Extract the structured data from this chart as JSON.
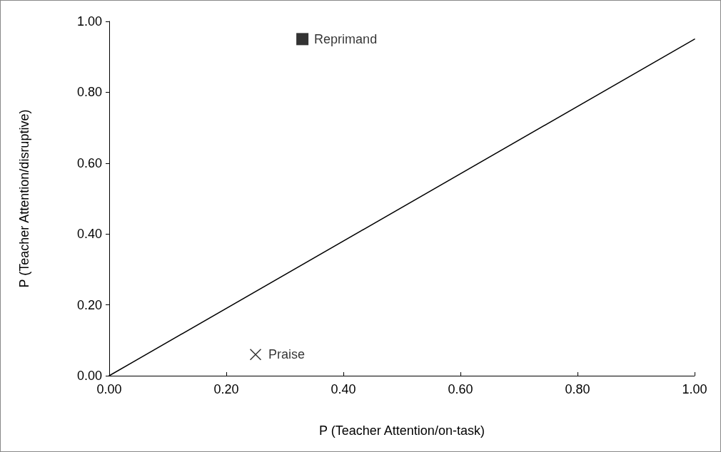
{
  "chart_data": {
    "type": "scatter",
    "xlabel": "P (Teacher Attention/on-task)",
    "ylabel": "P (Teacher Attention/disruptive)",
    "xlim": [
      0,
      1
    ],
    "ylim": [
      0,
      1
    ],
    "xticks": [
      {
        "value": 0,
        "label": "0.00"
      },
      {
        "value": 0.2,
        "label": "0.20"
      },
      {
        "value": 0.4,
        "label": "0.40"
      },
      {
        "value": 0.6,
        "label": "0.60"
      },
      {
        "value": 0.8,
        "label": "0.80"
      },
      {
        "value": 1,
        "label": "1.00"
      }
    ],
    "yticks": [
      {
        "value": 0,
        "label": "0.00"
      },
      {
        "value": 0.2,
        "label": "0.20"
      },
      {
        "value": 0.4,
        "label": "0.40"
      },
      {
        "value": 0.6,
        "label": "0.60"
      },
      {
        "value": 0.8,
        "label": "0.80"
      },
      {
        "value": 1,
        "label": "1.00"
      }
    ],
    "grid": false,
    "legend": false,
    "series": [
      {
        "name": "Reprimand",
        "color": "#000000",
        "marker": "square",
        "x": [
          0.33
        ],
        "values": [
          0.95
        ]
      },
      {
        "name": "Praise",
        "color": "#000000",
        "marker": "cross",
        "x": [
          0.25
        ],
        "values": [
          0.06
        ]
      },
      {
        "type": "line",
        "color": "#000000",
        "marker": "none",
        "line_style": "solid",
        "x": [
          0,
          1
        ],
        "values": [
          0,
          0.95
        ]
      }
    ]
  }
}
